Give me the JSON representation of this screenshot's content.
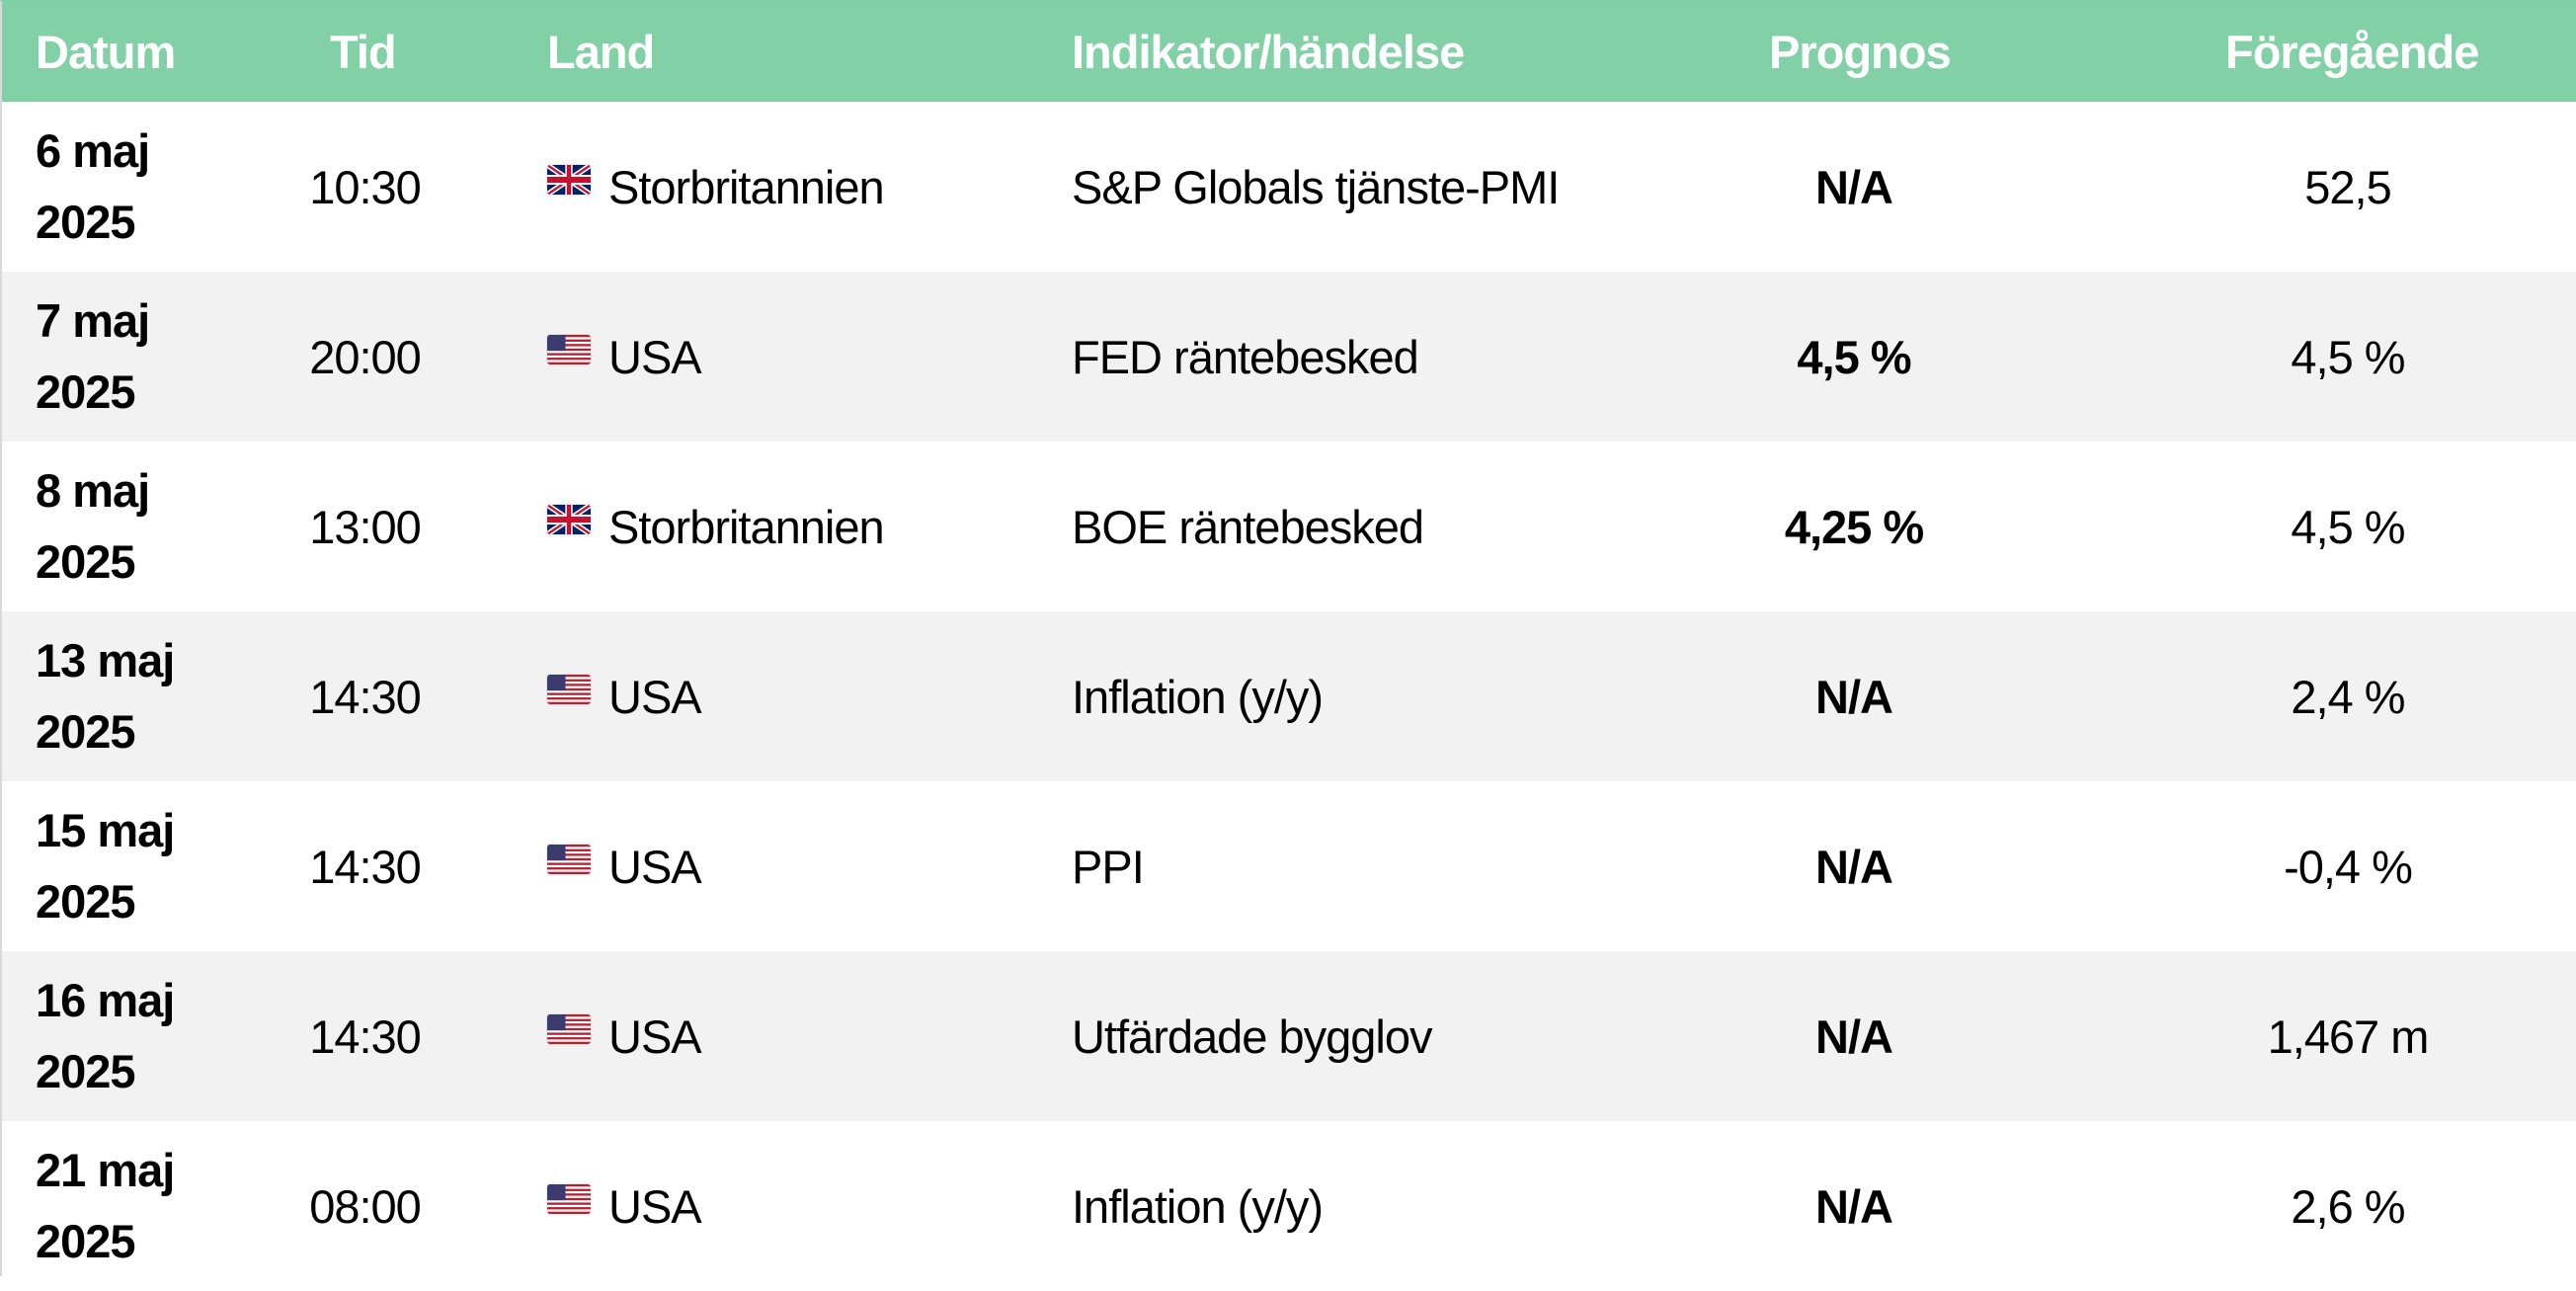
{
  "table": {
    "headers": {
      "date": "Datum",
      "time": "Tid",
      "country": "Land",
      "indicator": "Indikator/händelse",
      "forecast": "Prognos",
      "previous": "Föregående"
    },
    "rows": [
      {
        "date_line1": "6 maj",
        "date_line2": "2025",
        "time": "10:30",
        "flag": "uk-flag-icon",
        "country": "Storbritannien",
        "indicator": "S&P Globals tjänste-PMI",
        "forecast": "N/A",
        "previous": "52,5"
      },
      {
        "date_line1": "7 maj",
        "date_line2": "2025",
        "time": "20:00",
        "flag": "us-flag-icon",
        "country": "USA",
        "indicator": "FED räntebesked",
        "forecast": "4,5 %",
        "previous": "4,5 %"
      },
      {
        "date_line1": "8 maj",
        "date_line2": "2025",
        "time": "13:00",
        "flag": "uk-flag-icon",
        "country": "Storbritannien",
        "indicator": "BOE räntebesked",
        "forecast": "4,25 %",
        "previous": "4,5 %"
      },
      {
        "date_line1": "13 maj",
        "date_line2": "2025",
        "time": "14:30",
        "flag": "us-flag-icon",
        "country": "USA",
        "indicator": "Inflation (y/y)",
        "forecast": "N/A",
        "previous": "2,4 %"
      },
      {
        "date_line1": "15 maj",
        "date_line2": "2025",
        "time": "14:30",
        "flag": "us-flag-icon",
        "country": "USA",
        "indicator": "PPI",
        "forecast": "N/A",
        "previous": "-0,4 %"
      },
      {
        "date_line1": "16 maj",
        "date_line2": "2025",
        "time": "14:30",
        "flag": "us-flag-icon",
        "country": "USA",
        "indicator": "Utfärdade bygglov",
        "forecast": "N/A",
        "previous": "1,467 m"
      },
      {
        "date_line1": "21 maj",
        "date_line2": "2025",
        "time": "08:00",
        "flag": "us-flag-icon",
        "country": "USA",
        "indicator": "Inflation (y/y)",
        "forecast": "N/A",
        "previous": "2,6 %"
      }
    ]
  },
  "colors": {
    "header_bg": "#82d0a6",
    "header_text": "#ffffff",
    "row_alt_bg": "#f2f2f2"
  }
}
